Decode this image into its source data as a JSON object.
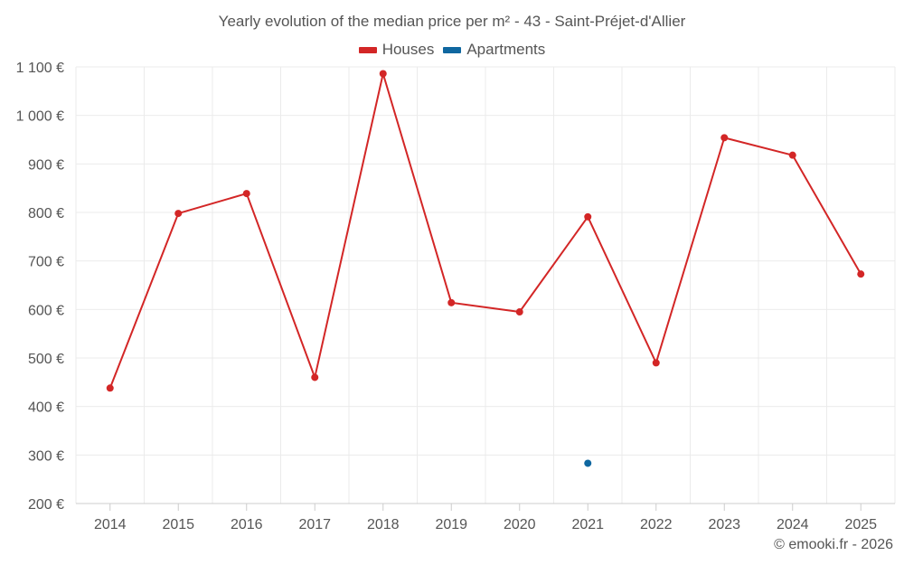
{
  "chart_data": {
    "type": "line",
    "title": "Yearly evolution of the median price per m² - 43 - Saint-Préjet-d'Allier",
    "categories": [
      "2014",
      "2015",
      "2016",
      "2017",
      "2018",
      "2019",
      "2020",
      "2021",
      "2022",
      "2023",
      "2024",
      "2025"
    ],
    "series": [
      {
        "name": "Houses",
        "color": "#d32626",
        "values": [
          438,
          798,
          839,
          460,
          1086,
          614,
          595,
          791,
          490,
          954,
          918,
          673
        ]
      },
      {
        "name": "Apartments",
        "color": "#0f67a0",
        "values": [
          null,
          null,
          null,
          null,
          null,
          null,
          null,
          283,
          null,
          null,
          null,
          null
        ]
      }
    ],
    "y_ticks": [
      "200 €",
      "300 €",
      "400 €",
      "500 €",
      "600 €",
      "700 €",
      "800 €",
      "900 €",
      "1 000 €",
      "1 100 €"
    ],
    "ylim": [
      200,
      1100
    ],
    "xlabel": "",
    "ylabel": "",
    "grid": true,
    "legend_position": "top-center"
  },
  "credit": "© emooki.fr - 2026"
}
